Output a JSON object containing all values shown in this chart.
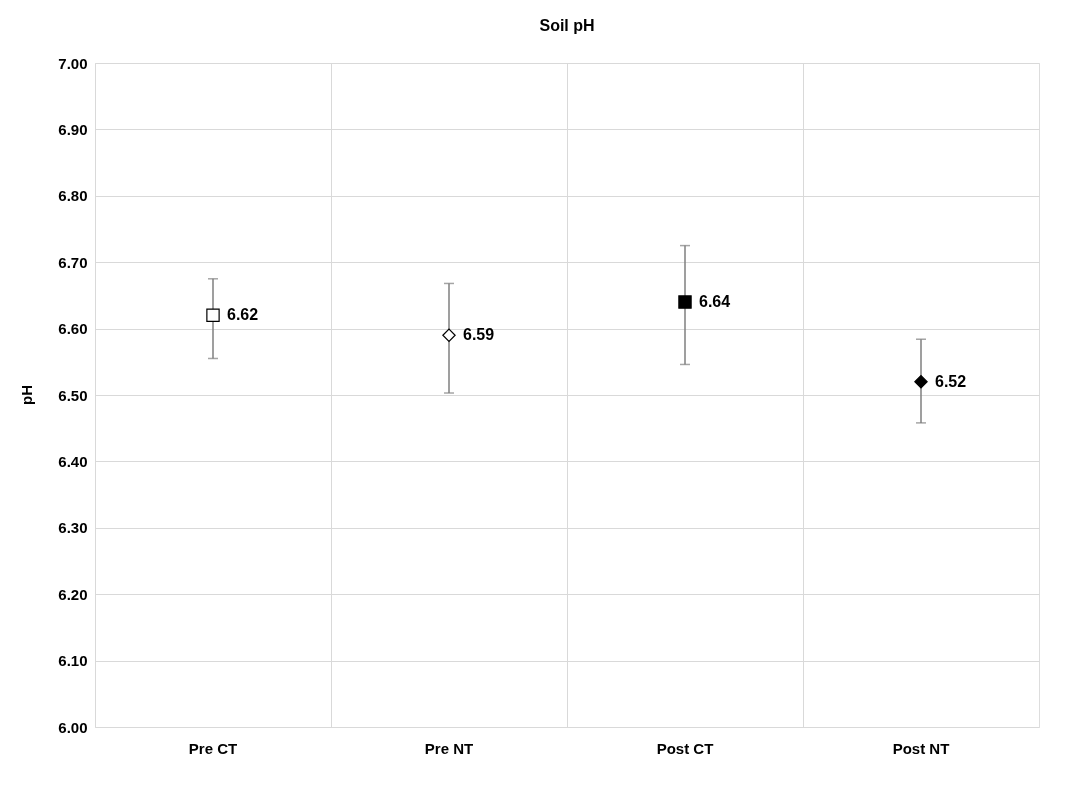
{
  "chart_data": {
    "type": "scatter",
    "title": "Soil pH",
    "ylabel": "pH",
    "categories": [
      "Pre CT",
      "Pre NT",
      "Post CT",
      "Post NT"
    ],
    "series": [
      {
        "color": "#ffffff",
        "marker": "square",
        "values": [
          6.62,
          null,
          null,
          null
        ],
        "errors": [
          [
            6.555,
            6.675
          ],
          null,
          null,
          null
        ]
      },
      {
        "color": "#ffffff",
        "marker": "diamond",
        "values": [
          null,
          6.59,
          null,
          null
        ],
        "errors": [
          null,
          [
            6.503,
            6.668
          ],
          null,
          null
        ]
      },
      {
        "color": "#000000",
        "marker": "square",
        "values": [
          null,
          null,
          6.64,
          null
        ],
        "errors": [
          null,
          null,
          [
            6.546,
            6.725
          ],
          null
        ]
      },
      {
        "color": "#000000",
        "marker": "diamond",
        "values": [
          null,
          null,
          null,
          6.52
        ],
        "errors": [
          null,
          null,
          null,
          [
            6.458,
            6.584
          ]
        ]
      }
    ],
    "ylim": [
      6.0,
      7.0
    ],
    "yticks": [
      {
        "value": 6.0,
        "label": "6.00"
      },
      {
        "value": 6.1,
        "label": "6.10"
      },
      {
        "value": 6.2,
        "label": "6.20"
      },
      {
        "value": 6.3,
        "label": "6.30"
      },
      {
        "value": 6.4,
        "label": "6.40"
      },
      {
        "value": 6.5,
        "label": "6.50"
      },
      {
        "value": 6.6,
        "label": "6.60"
      },
      {
        "value": 6.7,
        "label": "6.70"
      },
      {
        "value": 6.8,
        "label": "6.80"
      },
      {
        "value": 6.9,
        "label": "6.90"
      },
      {
        "value": 7.0,
        "label": "7.00"
      }
    ],
    "grid": true,
    "data_labels": true
  }
}
